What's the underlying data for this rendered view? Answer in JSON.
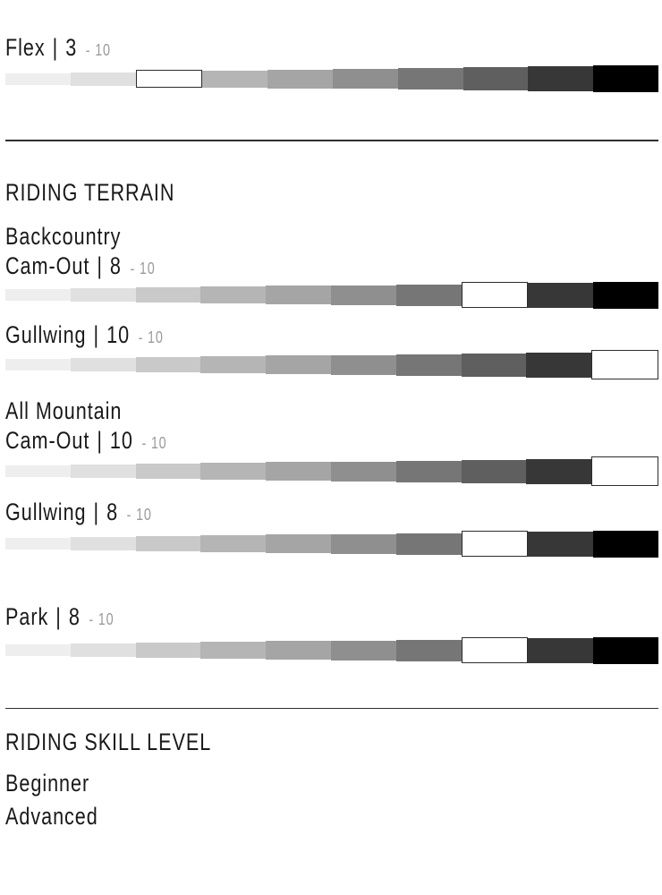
{
  "bar": {
    "segments": 10,
    "ramp": [
      "#eeeeee",
      "#e0e0e0",
      "#c9c9c9",
      "#b5b5b5",
      "#a5a5a5",
      "#8f8f8f",
      "#767676",
      "#5f5f5f",
      "#373737",
      "#000000"
    ],
    "selected_fill": "#ffffff",
    "selected_border": "#2d2d2d"
  },
  "ratings": [
    {
      "label": "Flex",
      "separator": "|",
      "value": 3,
      "suffix": "- 10"
    },
    {
      "label": "Cam-Out",
      "separator": "|",
      "value": 8,
      "suffix": "- 10"
    },
    {
      "label": "Gullwing",
      "separator": "|",
      "value": 10,
      "suffix": "- 10"
    },
    {
      "label": "Cam-Out",
      "separator": "|",
      "value": 10,
      "suffix": "- 10"
    },
    {
      "label": "Gullwing",
      "separator": "|",
      "value": 8,
      "suffix": "- 10"
    },
    {
      "label": "Park",
      "separator": "|",
      "value": 8,
      "suffix": "- 10"
    }
  ],
  "sections": {
    "riding_terrain_title": "RIDING TERRAIN",
    "groups": {
      "backcountry": "Backcountry",
      "all_mountain": "All Mountain"
    },
    "skill_title": "RIDING SKILL LEVEL",
    "skill_levels": [
      "Beginner",
      "Advanced"
    ]
  },
  "colors": {
    "text": "#191919",
    "muted": "#9b9b9b",
    "divider": "#2f2f2f"
  },
  "chart_data": {
    "type": "bar",
    "scale_min": 1,
    "scale_max": 10,
    "ratings": [
      {
        "group": "Flex",
        "label": "Flex",
        "value": 3,
        "max": 10
      },
      {
        "group": "Backcountry",
        "label": "Cam-Out",
        "value": 8,
        "max": 10
      },
      {
        "group": "Backcountry",
        "label": "Gullwing",
        "value": 10,
        "max": 10
      },
      {
        "group": "All Mountain",
        "label": "Cam-Out",
        "value": 10,
        "max": 10
      },
      {
        "group": "All Mountain",
        "label": "Gullwing",
        "value": 8,
        "max": 10
      },
      {
        "group": "Park",
        "label": "Park",
        "value": 8,
        "max": 10
      }
    ],
    "legend": "selected value shown as white outlined segment on light-to-dark 10-step ramp"
  }
}
